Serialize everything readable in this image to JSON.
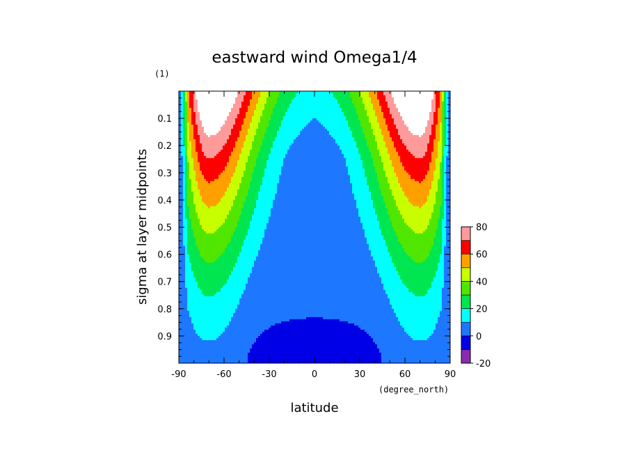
{
  "chart_data": {
    "type": "contour",
    "title": "eastward wind Omega1/4",
    "xlabel": "latitude",
    "xunits": "(degree_north)",
    "ylabel": "sigma at layer midpoints",
    "yunits": "(1)",
    "x_ticks": [
      "-90",
      "-60",
      "-30",
      "0",
      "30",
      "60",
      "90"
    ],
    "x_tick_values": [
      -90,
      -60,
      -30,
      0,
      30,
      60,
      90
    ],
    "y_ticks": [
      "0.1",
      "0.2",
      "0.3",
      "0.4",
      "0.5",
      "0.6",
      "0.7",
      "0.8",
      "0.9"
    ],
    "y_tick_values": [
      0.1,
      0.2,
      0.3,
      0.4,
      0.5,
      0.6,
      0.7,
      0.8,
      0.9
    ],
    "xlim": [
      -90,
      90
    ],
    "ylim": [
      1.0,
      0.0
    ],
    "y_inverted": true,
    "levels": [
      -20,
      -10,
      0,
      10,
      20,
      30,
      40,
      50,
      60,
      70,
      80
    ],
    "colorbar_labels": [
      "80",
      "60",
      "40",
      "20",
      "0",
      "-20"
    ],
    "colorbar_label_values": [
      80,
      60,
      40,
      20,
      0,
      -20
    ],
    "colors": [
      "#8a2bb0",
      "#0000e6",
      "#1e78ff",
      "#00ffff",
      "#00e650",
      "#50e600",
      "#c8ff00",
      "#ffa000",
      "#ff0000",
      "#ff9a9a",
      "#ffffff"
    ],
    "description_of_field": "Two symmetric westerly jets peaking above 80 near ±70° latitude at sigma ~0.05; values 0–10 in the tropical mid/lower troposphere and below 0 near the surface at the equator."
  }
}
